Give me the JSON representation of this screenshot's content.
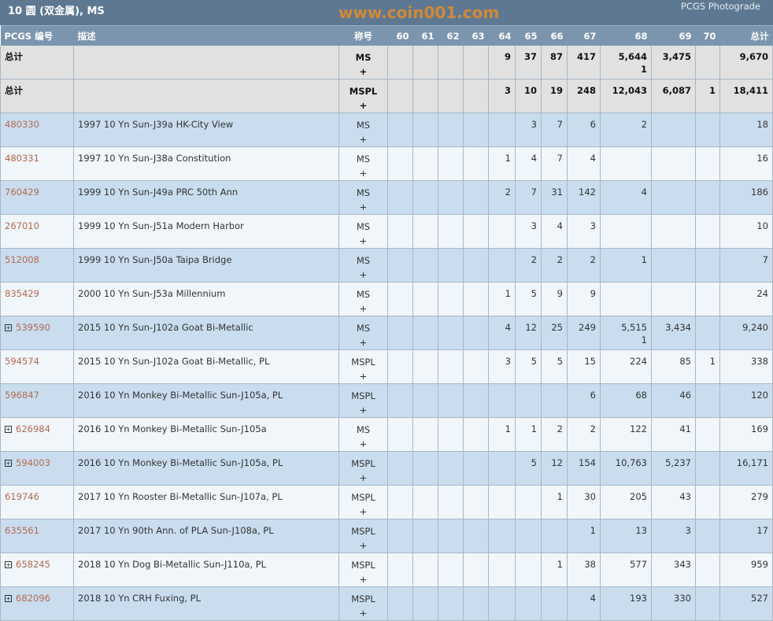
{
  "header": {
    "title": "10 圆 (双金属), MS",
    "brand": "PCGS Photograde"
  },
  "columns": [
    "PCGS 编号",
    "描述",
    "称号",
    "60",
    "61",
    "62",
    "63",
    "64",
    "65",
    "66",
    "67",
    "68",
    "69",
    "70",
    "总计"
  ],
  "totals": [
    {
      "label": "总计",
      "designation": "MS\n+",
      "grades": [
        "",
        "",
        "",
        "",
        "9",
        "37",
        "87",
        "417",
        "5,644\n1",
        "3,475",
        ""
      ],
      "total": "9,670"
    },
    {
      "label": "总计",
      "designation": "MSPL\n+",
      "grades": [
        "",
        "",
        "",
        "",
        "3",
        "10",
        "19",
        "248",
        "12,043",
        "6,087",
        "1"
      ],
      "total": "18,411"
    }
  ],
  "rows": [
    {
      "pcgs": "480330",
      "expand": false,
      "desc": "1997 10 Yn Sun-J39a HK-City View",
      "designation": "MS\n+",
      "grades": [
        "",
        "",
        "",
        "",
        "",
        "3",
        "7",
        "6",
        "2",
        "",
        ""
      ],
      "total": "18"
    },
    {
      "pcgs": "480331",
      "expand": false,
      "desc": "1997 10 Yn Sun-J38a Constitution",
      "designation": "MS\n+",
      "grades": [
        "",
        "",
        "",
        "",
        "1",
        "4",
        "7",
        "4",
        "",
        "",
        ""
      ],
      "total": "16"
    },
    {
      "pcgs": "760429",
      "expand": false,
      "desc": "1999 10 Yn Sun-J49a PRC 50th Ann",
      "designation": "MS\n+",
      "grades": [
        "",
        "",
        "",
        "",
        "2",
        "7",
        "31",
        "142",
        "4",
        "",
        ""
      ],
      "total": "186"
    },
    {
      "pcgs": "267010",
      "expand": false,
      "desc": "1999 10 Yn Sun-J51a Modern Harbor",
      "designation": "MS\n+",
      "grades": [
        "",
        "",
        "",
        "",
        "",
        "3",
        "4",
        "3",
        "",
        "",
        ""
      ],
      "total": "10"
    },
    {
      "pcgs": "512008",
      "expand": false,
      "desc": "1999 10 Yn Sun-J50a Taipa Bridge",
      "designation": "MS\n+",
      "grades": [
        "",
        "",
        "",
        "",
        "",
        "2",
        "2",
        "2",
        "1",
        "",
        ""
      ],
      "total": "7"
    },
    {
      "pcgs": "835429",
      "expand": false,
      "desc": "2000 10 Yn Sun-J53a Millennium",
      "designation": "MS\n+",
      "grades": [
        "",
        "",
        "",
        "",
        "1",
        "5",
        "9",
        "9",
        "",
        "",
        ""
      ],
      "total": "24"
    },
    {
      "pcgs": "539590",
      "expand": true,
      "desc": "2015 10 Yn Sun-J102a Goat Bi-Metallic",
      "designation": "MS\n+",
      "grades": [
        "",
        "",
        "",
        "",
        "4",
        "12",
        "25",
        "249",
        "5,515\n1",
        "3,434",
        ""
      ],
      "total": "9,240"
    },
    {
      "pcgs": "594574",
      "expand": false,
      "desc": "2015 10 Yn Sun-J102a Goat Bi-Metallic, PL",
      "designation": "MSPL\n+",
      "grades": [
        "",
        "",
        "",
        "",
        "3",
        "5",
        "5",
        "15",
        "224",
        "85",
        "1"
      ],
      "total": "338"
    },
    {
      "pcgs": "596847",
      "expand": false,
      "desc": "2016 10 Yn Monkey Bi-Metallic Sun-J105a, PL",
      "designation": "MSPL\n+",
      "grades": [
        "",
        "",
        "",
        "",
        "",
        "",
        "",
        "6",
        "68",
        "46",
        ""
      ],
      "total": "120"
    },
    {
      "pcgs": "626984",
      "expand": true,
      "desc": "2016 10 Yn Monkey Bi-Metallic Sun-J105a",
      "designation": "MS\n+",
      "grades": [
        "",
        "",
        "",
        "",
        "1",
        "1",
        "2",
        "2",
        "122",
        "41",
        ""
      ],
      "total": "169"
    },
    {
      "pcgs": "594003",
      "expand": true,
      "desc": "2016 10 Yn Monkey Bi-Metallic Sun-J105a, PL",
      "designation": "MSPL\n+",
      "grades": [
        "",
        "",
        "",
        "",
        "",
        "5",
        "12",
        "154",
        "10,763",
        "5,237",
        ""
      ],
      "total": "16,171"
    },
    {
      "pcgs": "619746",
      "expand": false,
      "desc": "2017 10 Yn Rooster Bi-Metallic Sun-J107a, PL",
      "designation": "MSPL\n+",
      "grades": [
        "",
        "",
        "",
        "",
        "",
        "",
        "1",
        "30",
        "205",
        "43",
        ""
      ],
      "total": "279"
    },
    {
      "pcgs": "635561",
      "expand": false,
      "desc": "2017 10 Yn 90th Ann. of PLA Sun-J108a, PL",
      "designation": "MSPL\n+",
      "grades": [
        "",
        "",
        "",
        "",
        "",
        "",
        "",
        "1",
        "13",
        "3",
        ""
      ],
      "total": "17"
    },
    {
      "pcgs": "658245",
      "expand": true,
      "desc": "2018 10 Yn Dog Bi-Metallic Sun-J110a, PL",
      "designation": "MSPL\n+",
      "grades": [
        "",
        "",
        "",
        "",
        "",
        "",
        "1",
        "38",
        "577",
        "343",
        ""
      ],
      "total": "959"
    },
    {
      "pcgs": "682096",
      "expand": true,
      "desc": "2018 10 Yn CRH Fuxing, PL",
      "designation": "MSPL\n+",
      "grades": [
        "",
        "",
        "",
        "",
        "",
        "",
        "",
        "4",
        "193",
        "330",
        ""
      ],
      "total": "527"
    }
  ],
  "watermark": "www.coin001.com"
}
